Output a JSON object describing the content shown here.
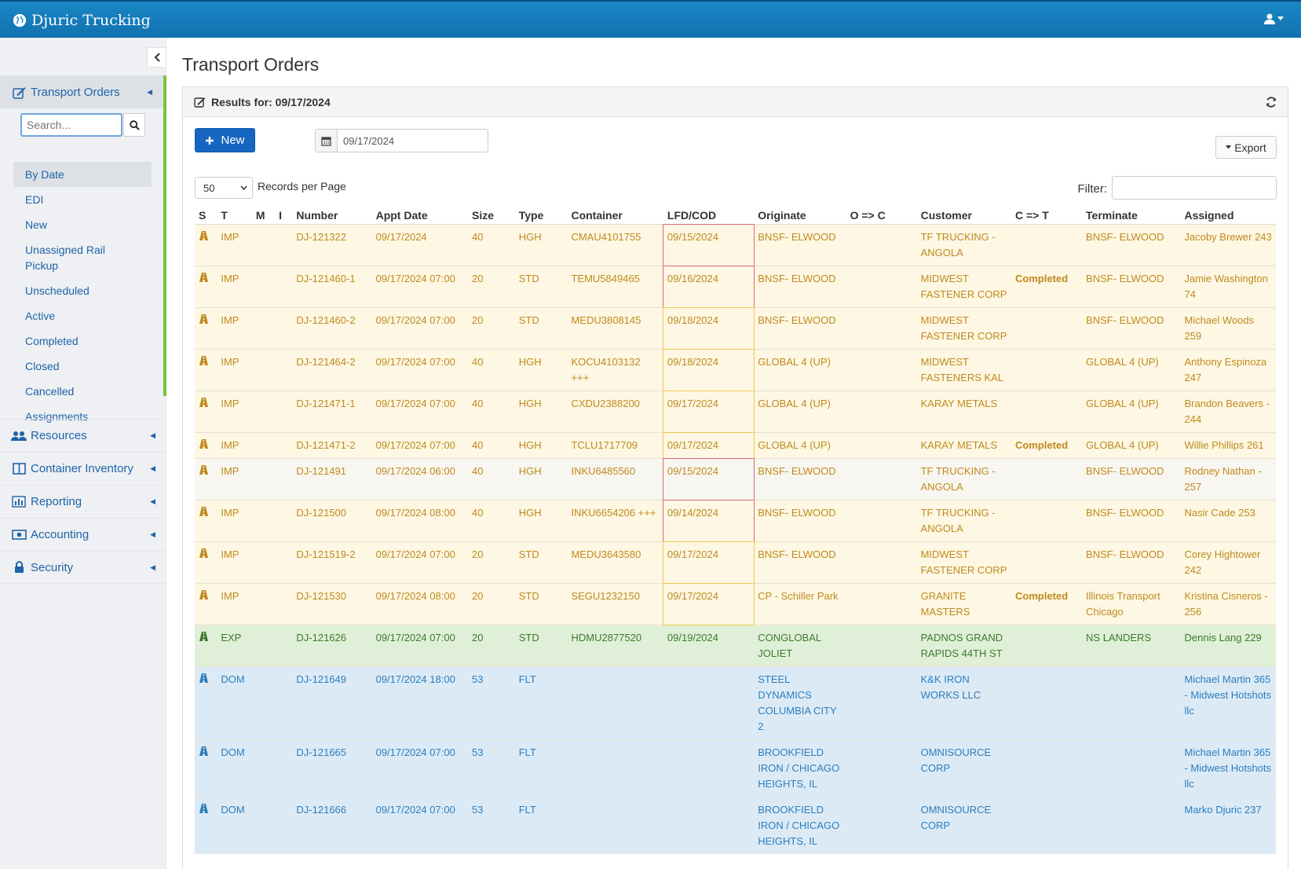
{
  "app": {
    "name": "Djuric Trucking"
  },
  "sidebar": {
    "search_placeholder": "Search...",
    "sections": [
      {
        "label": "Transport Orders",
        "icon": "edit-icon"
      },
      {
        "label": "Resources",
        "icon": "users-icon"
      },
      {
        "label": "Container Inventory",
        "icon": "columns-icon"
      },
      {
        "label": "Reporting",
        "icon": "bar-chart-icon"
      },
      {
        "label": "Accounting",
        "icon": "money-icon"
      },
      {
        "label": "Security",
        "icon": "lock-icon"
      }
    ],
    "sub_items": [
      "By Date",
      "EDI",
      "New",
      "Unassigned Rail Pickup",
      "Unscheduled",
      "Active",
      "Completed",
      "Closed",
      "Cancelled",
      "Assignments"
    ],
    "active_sub_item": "By Date"
  },
  "page": {
    "title": "Transport Orders"
  },
  "panel": {
    "heading": "Results for: 09/17/2024"
  },
  "toolbar": {
    "new_label": "New",
    "date_value": "09/17/2024",
    "export_label": "Export",
    "per_page_value": "50",
    "per_page_label": "Records per Page",
    "filter_label": "Filter:"
  },
  "table": {
    "columns": [
      "S",
      "T",
      "M",
      "I",
      "Number",
      "Appt Date",
      "Size",
      "Type",
      "Container",
      "LFD/COD",
      "Originate",
      "O => C",
      "Customer",
      "C => T",
      "Terminate",
      "Assigned"
    ],
    "rows": [
      {
        "kind": "imp",
        "lfd_flag": "red",
        "t": "IMP",
        "m": "",
        "i": "",
        "number": "DJ-121322",
        "appt": "09/17/2024",
        "size": "40",
        "type": "HGH",
        "container": "CMAU4101755",
        "lfd": "09/15/2024",
        "originate": "BNSF- ELWOOD",
        "oc": "",
        "customer": "TF TRUCKING - ANGOLA",
        "ct": "",
        "terminate": "BNSF- ELWOOD",
        "assigned": "Jacoby Brewer 243"
      },
      {
        "kind": "imp",
        "lfd_flag": "red",
        "t": "IMP",
        "m": "",
        "i": "",
        "number": "DJ-121460-1",
        "appt": "09/17/2024 07:00",
        "size": "20",
        "type": "STD",
        "container": "TEMU5849465",
        "lfd": "09/16/2024",
        "originate": "BNSF- ELWOOD",
        "oc": "",
        "customer": "MIDWEST FASTENER CORP",
        "ct": "Completed",
        "terminate": "BNSF- ELWOOD",
        "assigned": "Jamie Washington 74"
      },
      {
        "kind": "imp",
        "lfd_flag": "orange",
        "t": "IMP",
        "m": "",
        "i": "",
        "number": "DJ-121460-2",
        "appt": "09/17/2024 07:00",
        "size": "20",
        "type": "STD",
        "container": "MEDU3808145",
        "lfd": "09/18/2024",
        "originate": "BNSF- ELWOOD",
        "oc": "",
        "customer": "MIDWEST FASTENER CORP",
        "ct": "",
        "terminate": "BNSF- ELWOOD",
        "assigned": "Michael Woods 259"
      },
      {
        "kind": "imp",
        "lfd_flag": "orange",
        "t": "IMP",
        "m": "",
        "i": "",
        "number": "DJ-121464-2",
        "appt": "09/17/2024 07:00",
        "size": "40",
        "type": "HGH",
        "container": "KOCU4103132 +++",
        "lfd": "09/18/2024",
        "originate": "GLOBAL 4 (UP)",
        "oc": "",
        "customer": "MIDWEST FASTENERS KAL",
        "ct": "",
        "terminate": "GLOBAL 4 (UP)",
        "assigned": "Anthony Espinoza 247"
      },
      {
        "kind": "imp",
        "lfd_flag": "orange",
        "t": "IMP",
        "m": "",
        "i": "",
        "number": "DJ-121471-1",
        "appt": "09/17/2024 07:00",
        "size": "40",
        "type": "HGH",
        "container": "CXDU2388200",
        "lfd": "09/17/2024",
        "originate": "GLOBAL 4 (UP)",
        "oc": "",
        "customer": "KARAY METALS",
        "ct": "",
        "terminate": "GLOBAL 4 (UP)",
        "assigned": "Brandon Beavers - 244"
      },
      {
        "kind": "imp",
        "lfd_flag": "orange",
        "t": "IMP",
        "m": "",
        "i": "",
        "number": "DJ-121471-2",
        "appt": "09/17/2024 07:00",
        "size": "40",
        "type": "HGH",
        "container": "TCLU1717709",
        "lfd": "09/17/2024",
        "originate": "GLOBAL 4 (UP)",
        "oc": "",
        "customer": "KARAY METALS",
        "ct": "Completed",
        "terminate": "GLOBAL 4 (UP)",
        "assigned": "Willie Phillips 261"
      },
      {
        "kind": "imp-alt",
        "lfd_flag": "red",
        "t": "IMP",
        "m": "",
        "i": "",
        "number": "DJ-121491",
        "appt": "09/17/2024 06:00",
        "size": "40",
        "type": "HGH",
        "container": "INKU6485560",
        "lfd": "09/15/2024",
        "originate": "BNSF- ELWOOD",
        "oc": "",
        "customer": "TF TRUCKING - ANGOLA",
        "ct": "",
        "terminate": "BNSF- ELWOOD",
        "assigned": "Rodney Nathan - 257"
      },
      {
        "kind": "imp",
        "lfd_flag": "red",
        "t": "IMP",
        "m": "",
        "i": "",
        "number": "DJ-121500",
        "appt": "09/17/2024 08:00",
        "size": "40",
        "type": "HGH",
        "container": "INKU6654206 +++",
        "lfd": "09/14/2024",
        "originate": "BNSF- ELWOOD",
        "oc": "",
        "customer": "TF TRUCKING - ANGOLA",
        "ct": "",
        "terminate": "BNSF- ELWOOD",
        "assigned": "Nasir Cade 253"
      },
      {
        "kind": "imp",
        "lfd_flag": "orange",
        "t": "IMP",
        "m": "",
        "i": "",
        "number": "DJ-121519-2",
        "appt": "09/17/2024 07:00",
        "size": "20",
        "type": "STD",
        "container": "MEDU3643580",
        "lfd": "09/17/2024",
        "originate": "BNSF- ELWOOD",
        "oc": "",
        "customer": "MIDWEST FASTENER CORP",
        "ct": "",
        "terminate": "BNSF- ELWOOD",
        "assigned": "Corey Hightower 242"
      },
      {
        "kind": "imp",
        "lfd_flag": "orange",
        "t": "IMP",
        "m": "",
        "i": "",
        "number": "DJ-121530",
        "appt": "09/17/2024 08:00",
        "size": "20",
        "type": "STD",
        "container": "SEGU1232150",
        "lfd": "09/17/2024",
        "originate": "CP - Schiller Park",
        "oc": "",
        "customer": "GRANITE MASTERS",
        "ct": "Completed",
        "terminate": "Illinois Transport Chicago",
        "assigned": "Kristina Cisneros - 256"
      },
      {
        "kind": "exp",
        "lfd_flag": "",
        "t": "EXP",
        "m": "",
        "i": "",
        "number": "DJ-121626",
        "appt": "09/17/2024 07:00",
        "size": "20",
        "type": "STD",
        "container": "HDMU2877520",
        "lfd": "09/19/2024",
        "originate": "CONGLOBAL JOLIET",
        "oc": "",
        "customer": "PADNOS GRAND RAPIDS 44TH ST",
        "ct": "",
        "terminate": "NS LANDERS",
        "assigned": "Dennis Lang 229"
      },
      {
        "kind": "dom",
        "lfd_flag": "",
        "t": "DOM",
        "m": "",
        "i": "",
        "number": "DJ-121649",
        "appt": "09/17/2024 18:00",
        "size": "53",
        "type": "FLT",
        "container": "",
        "lfd": "",
        "originate": "STEEL DYNAMICS COLUMBIA CITY 2",
        "oc": "",
        "customer": "K&K IRON WORKS LLC",
        "ct": "",
        "terminate": "",
        "assigned": "Michael Martin 365 - Midwest Hotshots llc"
      },
      {
        "kind": "dom",
        "lfd_flag": "",
        "t": "DOM",
        "m": "",
        "i": "",
        "number": "DJ-121665",
        "appt": "09/17/2024 07:00",
        "size": "53",
        "type": "FLT",
        "container": "",
        "lfd": "",
        "originate": "BROOKFIELD IRON / CHICAGO HEIGHTS, IL",
        "oc": "",
        "customer": "OMNISOURCE CORP",
        "ct": "",
        "terminate": "",
        "assigned": "Michael Martin 365 - Midwest Hotshots llc"
      },
      {
        "kind": "dom",
        "lfd_flag": "",
        "t": "DOM",
        "m": "",
        "i": "",
        "number": "DJ-121666",
        "appt": "09/17/2024 07:00",
        "size": "53",
        "type": "FLT",
        "container": "",
        "lfd": "",
        "originate": "BROOKFIELD IRON / CHICAGO HEIGHTS, IL",
        "oc": "",
        "customer": "OMNISOURCE CORP",
        "ct": "",
        "terminate": "",
        "assigned": "Marko Djuric 237"
      }
    ]
  },
  "colors": {
    "topbar": "#1a87c5",
    "brand_blue": "#1665c1",
    "imp_row": "#fdf7e3",
    "exp_row": "#e0f0d8",
    "dom_row": "#dceaf6",
    "lfd_overdue_border": "#e06874",
    "lfd_due_border": "#f2c84f",
    "active_indicator": "#7bc142"
  }
}
